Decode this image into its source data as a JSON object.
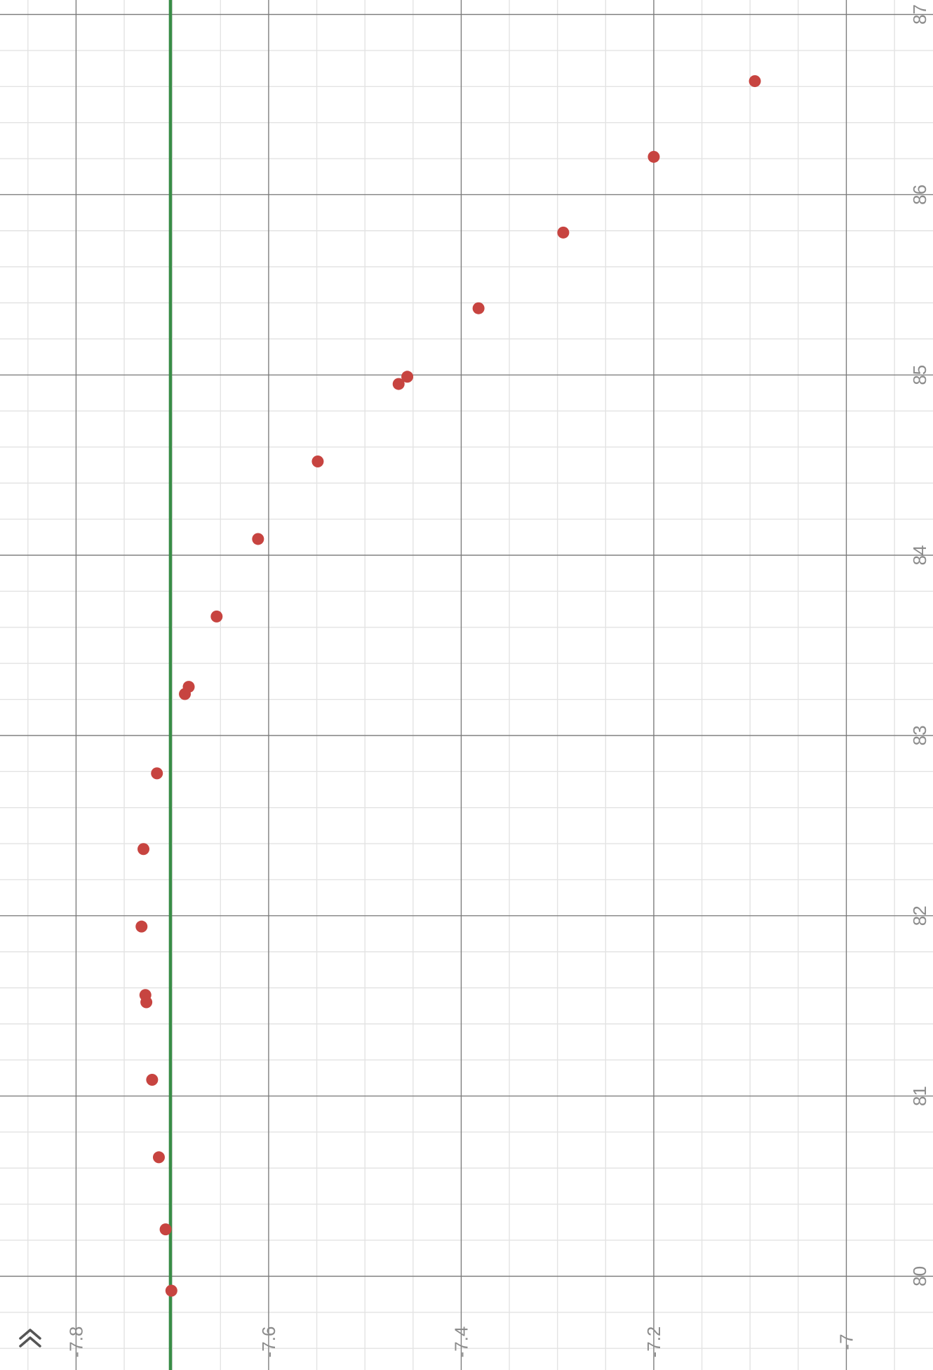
{
  "chart_data": {
    "type": "scatter",
    "title": "",
    "xlabel": "",
    "ylabel": "",
    "x_axis_direction": "reversed",
    "xlim": [
      -7.879,
      -6.91
    ],
    "ylim": [
      79.48,
      87.08
    ],
    "x_ticks": [
      {
        "value": -7.8,
        "label": "-7.8"
      },
      {
        "value": -7.6,
        "label": "-7.6"
      },
      {
        "value": -7.4,
        "label": "-7.4"
      },
      {
        "value": -7.2,
        "label": "-7.2"
      },
      {
        "value": -7.0,
        "label": "-7"
      }
    ],
    "y_ticks": [
      {
        "value": 80,
        "label": "80"
      },
      {
        "value": 81,
        "label": "81"
      },
      {
        "value": 82,
        "label": "82"
      },
      {
        "value": 83,
        "label": "83"
      },
      {
        "value": 84,
        "label": "84"
      },
      {
        "value": 85,
        "label": "85"
      },
      {
        "value": 86,
        "label": "86"
      },
      {
        "value": 87,
        "label": "87"
      }
    ],
    "grid": {
      "major": true,
      "minor": true,
      "minor_x_step": 0.05,
      "minor_y_step": 0.2
    },
    "vertical_line": {
      "x": -7.702,
      "color": "#388c46"
    },
    "series": [
      {
        "color": "#c74440",
        "points": [
          {
            "x": -7.701,
            "y": 79.92
          },
          {
            "x": -7.707,
            "y": 80.26
          },
          {
            "x": -7.714,
            "y": 80.66
          },
          {
            "x": -7.721,
            "y": 81.09
          },
          {
            "x": -7.727,
            "y": 81.52
          },
          {
            "x": -7.728,
            "y": 81.56
          },
          {
            "x": -7.732,
            "y": 81.94
          },
          {
            "x": -7.73,
            "y": 82.37
          },
          {
            "x": -7.716,
            "y": 82.79
          },
          {
            "x": -7.687,
            "y": 83.23
          },
          {
            "x": -7.683,
            "y": 83.27
          },
          {
            "x": -7.654,
            "y": 83.66
          },
          {
            "x": -7.611,
            "y": 84.09
          },
          {
            "x": -7.549,
            "y": 84.52
          },
          {
            "x": -7.465,
            "y": 84.95
          },
          {
            "x": -7.456,
            "y": 84.99
          },
          {
            "x": -7.382,
            "y": 85.37
          },
          {
            "x": -7.294,
            "y": 85.79
          },
          {
            "x": -7.2,
            "y": 86.21
          },
          {
            "x": -7.095,
            "y": 86.63
          }
        ]
      }
    ],
    "colors": {
      "background": "#ffffff",
      "minor_grid": "#e3e3e3",
      "major_grid": "#7a7a7a",
      "tick_label": "#8c8c8c",
      "points": "#c74440",
      "vertical_line": "#388c46"
    }
  },
  "ui": {
    "collapse_icon": "double-chevron-up-icon"
  }
}
